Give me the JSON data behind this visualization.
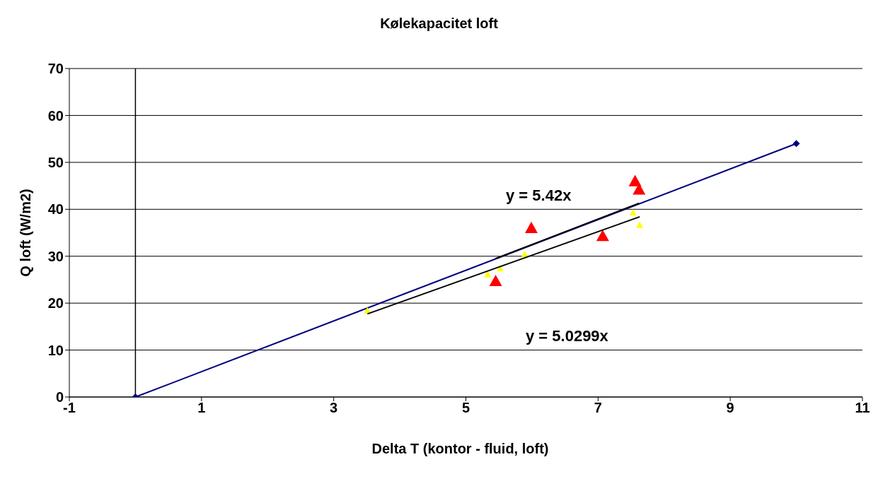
{
  "chart_data": {
    "type": "scatter",
    "title": "Kølekapacitet loft",
    "xlabel": "Delta T (kontor - fluid, loft)",
    "ylabel": "Q loft (W/m2)",
    "xlim": [
      -1,
      11
    ],
    "xticks": [
      -1,
      1,
      3,
      5,
      7,
      9,
      11
    ],
    "ylim": [
      0,
      70
    ],
    "yticks": [
      0,
      10,
      20,
      30,
      40,
      50,
      60,
      70
    ],
    "grid": "y",
    "ref_lines": [
      {
        "axis": "x",
        "value": 0,
        "color": "#000000"
      }
    ],
    "series": [
      {
        "type": "line",
        "color": "#000080",
        "marker": "diamond",
        "x": [
          0,
          10
        ],
        "values": [
          0,
          54
        ]
      },
      {
        "color": "#ff0000",
        "marker": "triangle",
        "x": [
          5.45,
          5.99,
          7.07,
          7.56,
          7.62
        ],
        "values": [
          24.7,
          36.0,
          34.3,
          46.0,
          44.2
        ]
      },
      {
        "color": "#ffff00",
        "marker": "triangle",
        "x": [
          3.51,
          5.33,
          5.52,
          5.89,
          7.53,
          7.63
        ],
        "values": [
          18.4,
          26.1,
          27.4,
          30.4,
          39.3,
          36.6
        ]
      },
      {
        "type": "line",
        "color": "#000000",
        "marker": "none",
        "x": [
          5.45,
          7.62
        ],
        "values": [
          29.5,
          41.3
        ]
      },
      {
        "type": "line",
        "color": "#000000",
        "marker": "none",
        "x": [
          3.51,
          7.63
        ],
        "values": [
          17.7,
          38.4
        ]
      }
    ],
    "annotations": [
      "y = 5.42x",
      "y = 5.0299x"
    ]
  }
}
